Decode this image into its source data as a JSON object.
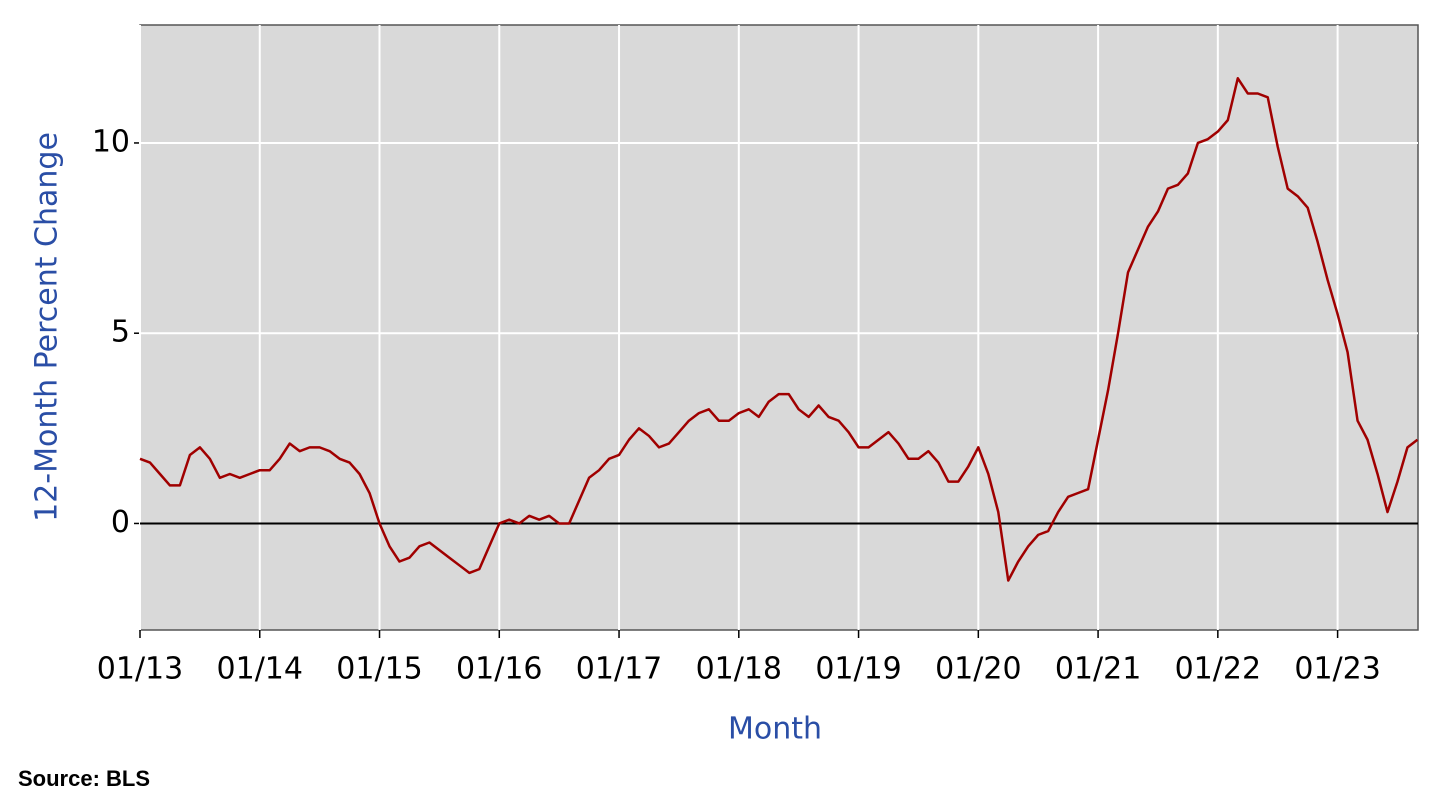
{
  "chart_data": {
    "type": "line",
    "ylabel": "12-Month Percent Change",
    "xlabel": "Month",
    "source": "Source: BLS",
    "x": [
      "01/13",
      "02/13",
      "03/13",
      "04/13",
      "05/13",
      "06/13",
      "07/13",
      "08/13",
      "09/13",
      "10/13",
      "11/13",
      "12/13",
      "01/14",
      "02/14",
      "03/14",
      "04/14",
      "05/14",
      "06/14",
      "07/14",
      "08/14",
      "09/14",
      "10/14",
      "11/14",
      "12/14",
      "01/15",
      "02/15",
      "03/15",
      "04/15",
      "05/15",
      "06/15",
      "07/15",
      "08/15",
      "09/15",
      "10/15",
      "11/15",
      "12/15",
      "01/16",
      "02/16",
      "03/16",
      "04/16",
      "05/16",
      "06/16",
      "07/16",
      "08/16",
      "09/16",
      "10/16",
      "11/16",
      "12/16",
      "01/17",
      "02/17",
      "03/17",
      "04/17",
      "05/17",
      "06/17",
      "07/17",
      "08/17",
      "09/17",
      "10/17",
      "11/17",
      "12/17",
      "01/18",
      "02/18",
      "03/18",
      "04/18",
      "05/18",
      "06/18",
      "07/18",
      "08/18",
      "09/18",
      "10/18",
      "11/18",
      "12/18",
      "01/19",
      "02/19",
      "03/19",
      "04/19",
      "05/19",
      "06/19",
      "07/19",
      "08/19",
      "09/19",
      "10/19",
      "11/19",
      "12/19",
      "01/20",
      "02/20",
      "03/20",
      "04/20",
      "05/20",
      "06/20",
      "07/20",
      "08/20",
      "09/20",
      "10/20",
      "11/20",
      "12/20",
      "01/21",
      "02/21",
      "03/21",
      "04/21",
      "05/21",
      "06/21",
      "07/21",
      "08/21",
      "09/21",
      "10/21",
      "11/21",
      "12/21",
      "01/22",
      "02/22",
      "03/22",
      "04/22",
      "05/22",
      "06/22",
      "07/22",
      "08/22",
      "09/22",
      "10/22",
      "11/22",
      "12/22",
      "01/23",
      "02/23",
      "03/23",
      "04/23",
      "05/23",
      "06/23",
      "07/23",
      "08/23",
      "09/23"
    ],
    "series": [
      {
        "color": "#a00000",
        "values": [
          1.7,
          1.6,
          1.3,
          1.0,
          1.0,
          1.8,
          2.0,
          1.7,
          1.2,
          1.3,
          1.2,
          1.3,
          1.4,
          1.4,
          1.7,
          2.1,
          1.9,
          2.0,
          2.0,
          1.9,
          1.7,
          1.6,
          1.3,
          0.8,
          0.0,
          -0.6,
          -1.0,
          -0.9,
          -0.6,
          -0.5,
          -0.7,
          -0.9,
          -1.1,
          -1.3,
          -1.2,
          -0.6,
          0.0,
          0.1,
          0.0,
          0.2,
          0.1,
          0.2,
          0.0,
          0.0,
          0.6,
          1.2,
          1.4,
          1.7,
          1.8,
          2.2,
          2.5,
          2.3,
          2.0,
          2.1,
          2.4,
          2.7,
          2.9,
          3.0,
          2.7,
          2.7,
          2.9,
          3.0,
          2.8,
          3.2,
          3.4,
          3.4,
          3.0,
          2.8,
          3.1,
          2.8,
          2.7,
          2.4,
          2.0,
          2.0,
          2.2,
          2.4,
          2.1,
          1.7,
          1.7,
          1.9,
          1.6,
          1.1,
          1.1,
          1.5,
          2.0,
          1.3,
          0.3,
          -1.5,
          -1.0,
          -0.6,
          -0.3,
          -0.2,
          0.3,
          0.7,
          0.8,
          0.9,
          2.2,
          3.5,
          5.0,
          6.6,
          7.2,
          7.8,
          8.2,
          8.8,
          8.9,
          9.2,
          10.0,
          10.1,
          10.3,
          10.6,
          11.7,
          11.3,
          11.3,
          11.2,
          9.9,
          8.8,
          8.6,
          8.3,
          7.4,
          6.4,
          5.5,
          4.5,
          2.7,
          2.2,
          1.3,
          0.3,
          1.1,
          2.0,
          2.2
        ]
      }
    ],
    "xticks": [
      "01/13",
      "01/14",
      "01/15",
      "01/16",
      "01/17",
      "01/18",
      "01/19",
      "01/20",
      "01/21",
      "01/22",
      "01/23"
    ],
    "ylim": [
      -2.8,
      13.1
    ],
    "yticks": [
      0,
      5,
      10
    ],
    "grid": true
  }
}
